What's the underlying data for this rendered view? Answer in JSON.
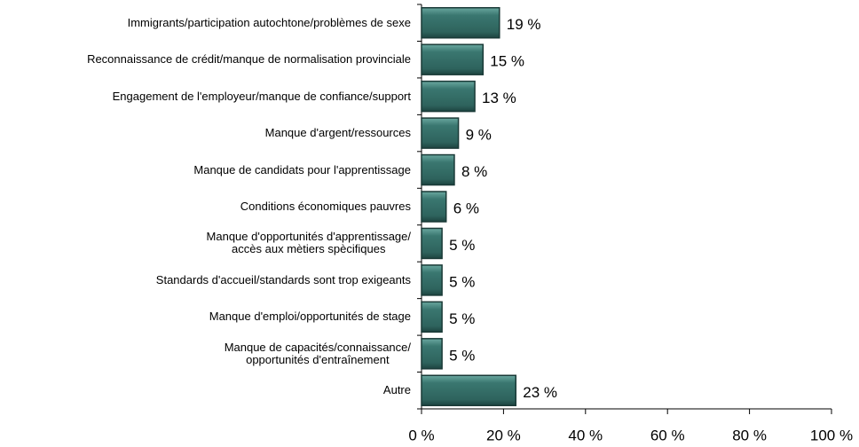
{
  "chart_data": {
    "type": "barh",
    "categories": [
      "Immigrants/participation autochtone/problèmes de sexe",
      "Reconnaissance de crédit/manque de normalisation provinciale",
      "Engagement de l'employeur/manque de confiance/support",
      "Manque d'argent/ressources",
      "Manque de candidats pour l'apprentissage",
      "Conditions économiques pauvres",
      "Manque d'opportunités d'apprentissage/\naccès aux mètiers spècifiques",
      "Standards d'accueil/standards sont trop exigeants",
      "Manque d'emploi/opportunités de stage",
      "Manque de capacités/connaissance/\nopportunités d'entraînement",
      "Autre"
    ],
    "values": [
      19,
      15,
      13,
      9,
      8,
      6,
      5,
      5,
      5,
      5,
      23
    ],
    "value_labels": [
      "19 %",
      "15 %",
      "13 %",
      "9 %",
      "8 %",
      "6 %",
      "5 %",
      "5 %",
      "5 %",
      "5 %",
      "23 %"
    ],
    "color": "#3a7770",
    "xlim": [
      0,
      100
    ],
    "xticks": [
      {
        "value": 0,
        "label": "0 %"
      },
      {
        "value": 20,
        "label": "20 %"
      },
      {
        "value": 40,
        "label": "40 %"
      },
      {
        "value": 60,
        "label": "60 %"
      },
      {
        "value": 80,
        "label": "80 %"
      },
      {
        "value": 100,
        "label": "100 %"
      }
    ]
  }
}
